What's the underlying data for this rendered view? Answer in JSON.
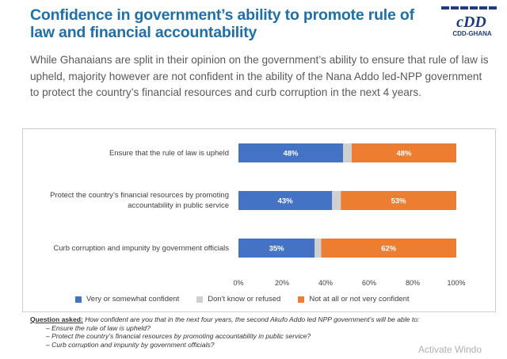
{
  "title": "Confidence in government’s ability to promote rule of law and financial accountability",
  "logo": {
    "text": "CDD-GHANA",
    "glyph": "cDD"
  },
  "intro": "While Ghanaians are split in their opinion on the government’s ability to ensure that rule of law is upheld, majority however are not confident in the ability of the Nana Addo led-NPP government to protect the country’s financial resources and curb corruption in the next 4 years.",
  "colors": {
    "confident": "#4472c4",
    "dont_know": "#d0d0d0",
    "not_confident": "#ed7d31",
    "title": "#1f6fa8"
  },
  "chart_data": {
    "type": "bar",
    "orientation": "horizontal",
    "stacked": true,
    "categories": [
      "Ensure that the rule of law is upheld",
      "Protect the country’s financial resources by promoting accountability in public service",
      "Curb corruption and impunity by government officials"
    ],
    "series": [
      {
        "name": "Very or somewhat confident",
        "values": [
          48,
          43,
          35
        ]
      },
      {
        "name": "Don't know or refused",
        "values": [
          4,
          4,
          3
        ]
      },
      {
        "name": "Not at all or not very confident",
        "values": [
          48,
          53,
          62
        ]
      }
    ],
    "data_labels": [
      [
        "48%",
        "",
        "48%"
      ],
      [
        "43%",
        "",
        "53%"
      ],
      [
        "35%",
        "",
        "62%"
      ]
    ],
    "xticks": [
      "0%",
      "20%",
      "40%",
      "60%",
      "80%",
      "100%"
    ],
    "xlim": [
      0,
      100
    ],
    "legend_position": "bottom",
    "grid": false
  },
  "question": {
    "label": "Question asked:",
    "text": "How confident are you that in the next four years, the second Akufo Addo led NPP government’s will be able to:",
    "items": [
      "Ensure the rule of law is upheld?",
      "Protect the country’s financial resources by promoting accountability in public service?",
      "Curb corruption and impunity by government officials?"
    ]
  },
  "watermark": "Activate Windo"
}
